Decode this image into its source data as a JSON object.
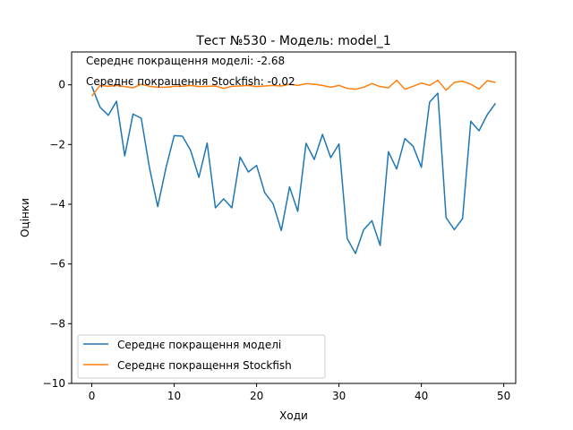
{
  "chart_data": {
    "type": "line",
    "title": "Тест №530 - Модель: model_1",
    "xlabel": "Ходи",
    "ylabel": "Оцінки",
    "xlim": [
      -2.45,
      51.45
    ],
    "ylim": [
      -10,
      1.1
    ],
    "xticks": [
      0,
      10,
      20,
      30,
      40,
      50
    ],
    "yticks": [
      0,
      -2,
      -4,
      -6,
      -8,
      -10
    ],
    "grid": false,
    "legend_position": "lower-left",
    "annotations": [
      "Середнє покращення моделі: -2.68",
      "Середнє покращення Stockfish: -0.02"
    ],
    "x": [
      0,
      1,
      2,
      3,
      4,
      5,
      6,
      7,
      8,
      9,
      10,
      11,
      12,
      13,
      14,
      15,
      16,
      17,
      18,
      19,
      20,
      21,
      22,
      23,
      24,
      25,
      26,
      27,
      28,
      29,
      30,
      31,
      32,
      33,
      34,
      35,
      36,
      37,
      38,
      39,
      40,
      41,
      42,
      43,
      44,
      45,
      46,
      47,
      48,
      49
    ],
    "series": [
      {
        "name": "Середнє покращення моделі",
        "color": "#1f77b4",
        "values": [
          -0.05,
          -0.75,
          -1.02,
          -0.55,
          -2.38,
          -0.98,
          -1.12,
          -2.78,
          -4.08,
          -2.78,
          -1.7,
          -1.72,
          -2.2,
          -3.1,
          -1.95,
          -4.12,
          -3.82,
          -4.12,
          -2.42,
          -2.92,
          -2.7,
          -3.62,
          -3.98,
          -4.88,
          -3.42,
          -4.24,
          -1.96,
          -2.5,
          -1.66,
          -2.44,
          -1.98,
          -5.15,
          -5.65,
          -4.85,
          -4.55,
          -5.38,
          -2.24,
          -2.82,
          -1.8,
          -2.06,
          -2.76,
          -0.58,
          -0.28,
          -4.45,
          -4.85,
          -4.48,
          -1.22,
          -1.54,
          -1.0,
          -0.62
        ]
      },
      {
        "name": "Середнє покращення Stockfish",
        "color": "#ff7f0e",
        "values": [
          -0.38,
          -0.02,
          -0.05,
          -0.02,
          -0.06,
          -0.1,
          0.02,
          -0.05,
          -0.08,
          -0.08,
          -0.05,
          -0.05,
          -0.02,
          -0.06,
          -0.05,
          -0.04,
          -0.12,
          -0.05,
          -0.04,
          -0.02,
          -0.06,
          -0.04,
          -0.02,
          -0.04,
          0.02,
          -0.02,
          0.04,
          0.02,
          -0.02,
          -0.08,
          -0.02,
          -0.12,
          -0.15,
          -0.08,
          0.04,
          -0.06,
          -0.1,
          0.15,
          -0.15,
          -0.05,
          0.06,
          -0.02,
          0.15,
          -0.18,
          0.08,
          0.12,
          0.02,
          -0.14,
          0.14,
          0.08
        ]
      }
    ]
  }
}
